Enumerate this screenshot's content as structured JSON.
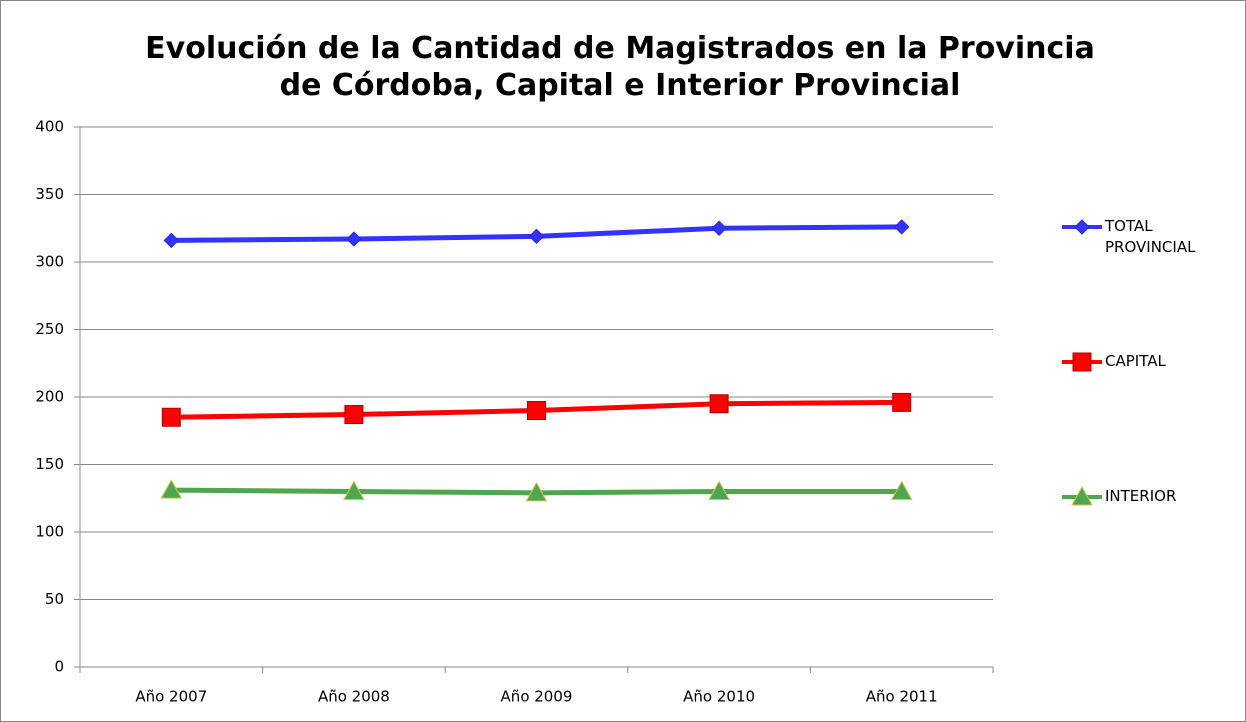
{
  "chart_data": {
    "type": "line",
    "title": "Evolución de la Cantidad de Magistrados en la Provincia de Córdoba, Capital e Interior Provincial",
    "categories": [
      "Año 2007",
      "Año 2008",
      "Año 2009",
      "Año 2010",
      "Año 2011"
    ],
    "series": [
      {
        "name": "TOTAL PROVINCIAL",
        "color": "#3333ff",
        "marker": "diamond",
        "values": [
          316,
          317,
          319,
          325,
          326
        ]
      },
      {
        "name": "CAPITAL",
        "color": "#ff0000",
        "marker": "square",
        "values": [
          185,
          187,
          190,
          195,
          196
        ]
      },
      {
        "name": "INTERIOR",
        "color": "#4ea64e",
        "marker": "triangle",
        "values": [
          131,
          130,
          129,
          130,
          130
        ]
      }
    ],
    "ylim": [
      0,
      400
    ],
    "yticks": [
      0,
      50,
      100,
      150,
      200,
      250,
      300,
      350,
      400
    ],
    "grid": true,
    "legend": "right"
  }
}
